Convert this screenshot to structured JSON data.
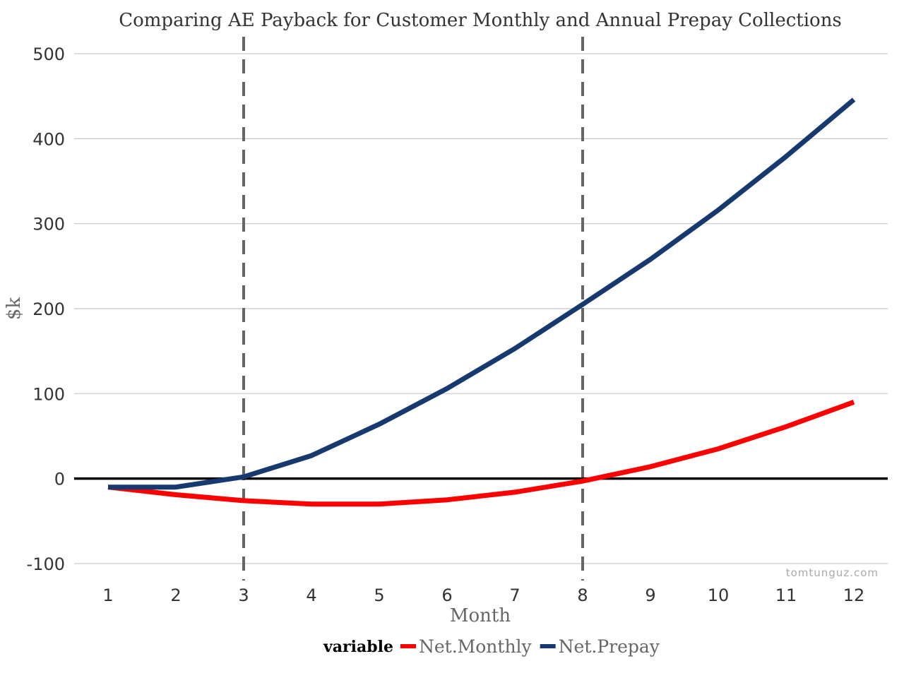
{
  "chart_data": {
    "type": "line",
    "title": "Comparing AE Payback for Customer Monthly and Annual Prepay Collections",
    "xlabel": "Month",
    "ylabel": "$k",
    "x": [
      1,
      2,
      3,
      4,
      5,
      6,
      7,
      8,
      9,
      10,
      11,
      12
    ],
    "xlim": [
      0.5,
      12.5
    ],
    "ylim": [
      -120,
      520
    ],
    "yticks": [
      -100,
      0,
      100,
      200,
      300,
      400,
      500
    ],
    "grid": "horizontal",
    "series": [
      {
        "name": "Net.Monthly",
        "color": "#FF0000",
        "values": [
          -10,
          -19,
          -26,
          -30,
          -30,
          -25,
          -16,
          -3,
          14,
          35,
          61,
          90
        ]
      },
      {
        "name": "Net.Prepay",
        "color": "#163A70",
        "values": [
          -10,
          -10,
          2,
          27,
          64,
          106,
          153,
          205,
          258,
          316,
          379,
          446
        ]
      }
    ],
    "reference_lines": {
      "vertical_x": [
        3,
        8
      ],
      "vertical_color": "#666666",
      "horizontal_y": 0,
      "horizontal_color": "#000000"
    },
    "legend": {
      "title": "variable",
      "placement": "bottom"
    }
  },
  "watermark": "tomtunguz.com"
}
